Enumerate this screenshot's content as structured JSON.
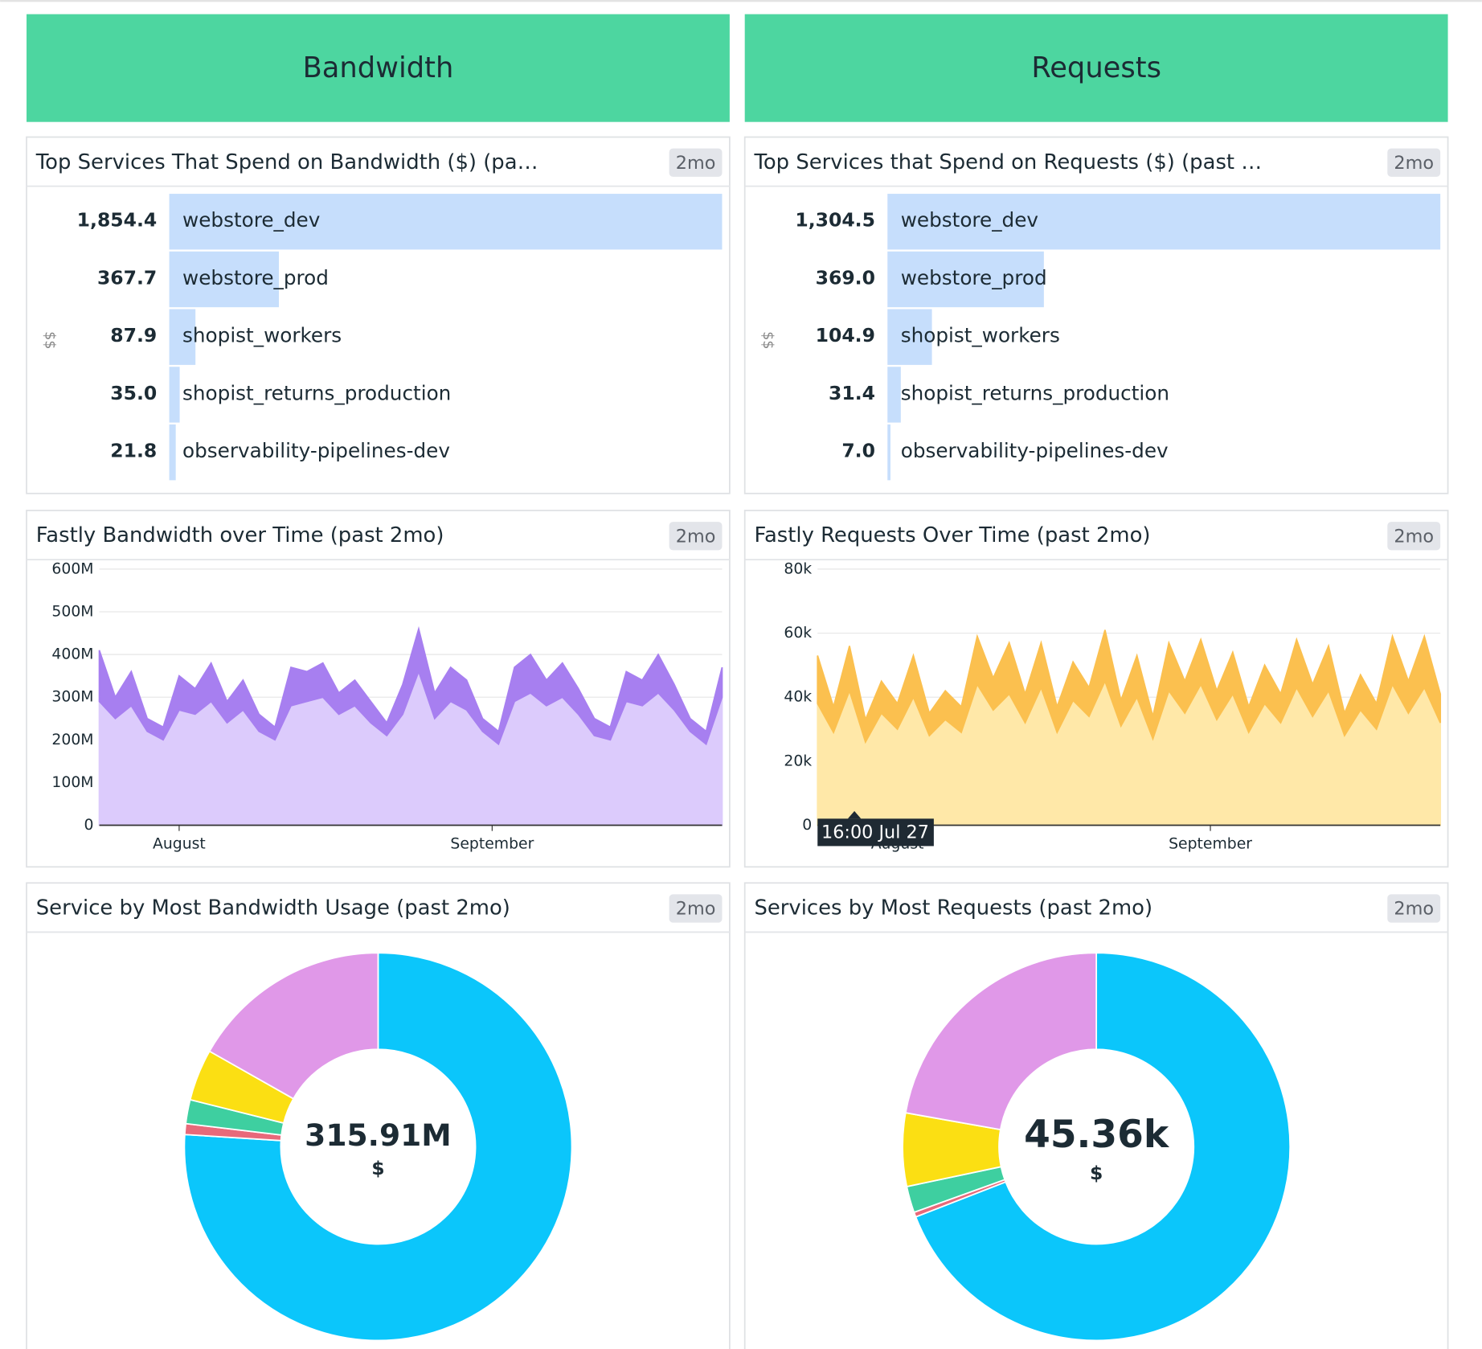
{
  "sections": [
    {
      "title": "Bandwidth"
    },
    {
      "title": "Requests"
    }
  ],
  "chart_data": [
    {
      "type": "toplist",
      "title": "Top Services That Spend on Bandwidth ($) (pa…",
      "badge": "2mo",
      "ylabel": "$$",
      "color": "#c6defc",
      "categories": [
        "webstore_dev",
        "webstore_prod",
        "shopist_workers",
        "shopist_returns_production",
        "observability-pipelines-dev"
      ],
      "values": [
        1854.4,
        367.7,
        87.9,
        35.0,
        21.8
      ],
      "value_labels": [
        "1,854.4",
        "367.7",
        "87.9",
        "35.0",
        "21.8"
      ]
    },
    {
      "type": "toplist",
      "title": "Top Services that Spend on Requests ($) (past …",
      "badge": "2mo",
      "ylabel": "$$",
      "color": "#c6defc",
      "categories": [
        "webstore_dev",
        "webstore_prod",
        "shopist_workers",
        "shopist_returns_production",
        "observability-pipelines-dev"
      ],
      "values": [
        1304.5,
        369.0,
        104.9,
        31.4,
        7.0
      ],
      "value_labels": [
        "1,304.5",
        "369.0",
        "104.9",
        "31.4",
        "7.0"
      ]
    },
    {
      "type": "area",
      "title": "Fastly Bandwidth over Time (past 2mo)",
      "badge": "2mo",
      "grid": true,
      "stacked": true,
      "xlim": [
        0,
        39
      ],
      "xticks": [
        {
          "value": 5,
          "label": "August"
        },
        {
          "value": 24.6,
          "label": "September"
        }
      ],
      "ylim": [
        0,
        600000000
      ],
      "yticks": [
        0,
        {
          "value": 100000000,
          "label": "100M"
        },
        {
          "value": 200000000,
          "label": "200M"
        },
        {
          "value": 300000000,
          "label": "300M"
        },
        {
          "value": 400000000,
          "label": "400M"
        },
        {
          "value": 500000000,
          "label": "500M"
        },
        {
          "value": 600000000,
          "label": "600M"
        }
      ],
      "series": [
        {
          "color": "#dccbfc",
          "values": [
            290000000.0,
            250000000.0,
            280000000.0,
            220000000.0,
            200000000.0,
            270000000.0,
            260000000.0,
            290000000.0,
            240000000.0,
            270000000.0,
            220000000.0,
            200000000.0,
            280000000.0,
            290000000.0,
            300000000.0,
            260000000.0,
            280000000.0,
            240000000.0,
            210000000.0,
            260000000.0,
            360000000.0,
            250000000.0,
            290000000.0,
            270000000.0,
            220000000.0,
            190000000.0,
            290000000.0,
            310000000.0,
            280000000.0,
            300000000.0,
            260000000.0,
            210000000.0,
            200000000.0,
            290000000.0,
            280000000.0,
            310000000.0,
            270000000.0,
            220000000.0,
            190000000.0,
            300000000.0
          ]
        },
        {
          "color": "#a77ff0",
          "values": [
            120000000.0,
            50000000.0,
            80000000.0,
            30000000.0,
            30000000.0,
            80000000.0,
            60000000.0,
            90000000.0,
            50000000.0,
            70000000.0,
            40000000.0,
            30000000.0,
            90000000.0,
            70000000.0,
            80000000.0,
            50000000.0,
            60000000.0,
            50000000.0,
            30000000.0,
            70000000.0,
            100000000.0,
            60000000.0,
            80000000.0,
            70000000.0,
            30000000.0,
            30000000.0,
            80000000.0,
            90000000.0,
            60000000.0,
            80000000.0,
            60000000.0,
            40000000.0,
            30000000.0,
            70000000.0,
            60000000.0,
            90000000.0,
            60000000.0,
            30000000.0,
            30000000.0,
            70000000.0
          ]
        }
      ]
    },
    {
      "type": "area",
      "title": "Fastly Requests Over Time (past 2mo)",
      "badge": "2mo",
      "grid": true,
      "stacked": true,
      "tooltip": "16:00 Jul 27",
      "xlim": [
        0,
        39
      ],
      "xticks": [
        {
          "value": 5,
          "label": "August"
        },
        {
          "value": 24.6,
          "label": "September"
        }
      ],
      "ylim": [
        0,
        80000
      ],
      "yticks": [
        0,
        {
          "value": 20000,
          "label": "20k"
        },
        {
          "value": 40000,
          "label": "40k"
        },
        {
          "value": 60000,
          "label": "60k"
        },
        {
          "value": 80000,
          "label": "80k"
        }
      ],
      "series": [
        {
          "color": "#ffe8a8",
          "values": [
            38000,
            29000,
            42000,
            26000,
            35000,
            30000,
            40000,
            28000,
            33000,
            29000,
            44000,
            36000,
            41000,
            32000,
            43000,
            29000,
            39000,
            34000,
            45000,
            31000,
            40000,
            27000,
            42000,
            35000,
            44000,
            33000,
            41000,
            29000,
            38000,
            32000,
            43000,
            34000,
            42000,
            28000,
            36000,
            30000,
            44000,
            35000,
            43000,
            32000
          ]
        },
        {
          "color": "#fbc04f",
          "values": [
            15000,
            8000,
            14000,
            7000,
            10000,
            8000,
            13000,
            7000,
            9000,
            8000,
            15000,
            10000,
            16000,
            9000,
            14000,
            8000,
            12000,
            9000,
            16000,
            8000,
            13000,
            7000,
            15000,
            10000,
            14000,
            9000,
            13000,
            8000,
            12000,
            9000,
            15000,
            10000,
            14000,
            7000,
            11000,
            8000,
            15000,
            10000,
            16000,
            9000
          ]
        }
      ]
    },
    {
      "type": "donut",
      "title": "Service by Most Bandwidth Usage (past 2mo)",
      "badge": "2mo",
      "center_value": "315.91M",
      "center_unit": "$",
      "values": [
        76.0,
        0.9,
        2.0,
        4.3,
        16.8
      ],
      "colors": [
        "#0bc6fb",
        "#e8697a",
        "#3ecfa0",
        "#fbdf13",
        "#e098e8"
      ]
    },
    {
      "type": "donut",
      "title": "Services by Most Requests (past 2mo)",
      "badge": "2mo",
      "center_value": "45.36k",
      "center_unit": "$",
      "values": [
        69.1,
        0.4,
        2.2,
        6.1,
        22.2
      ],
      "colors": [
        "#0bc6fb",
        "#e8697a",
        "#3ecfa0",
        "#fbdf13",
        "#e098e8"
      ]
    }
  ]
}
